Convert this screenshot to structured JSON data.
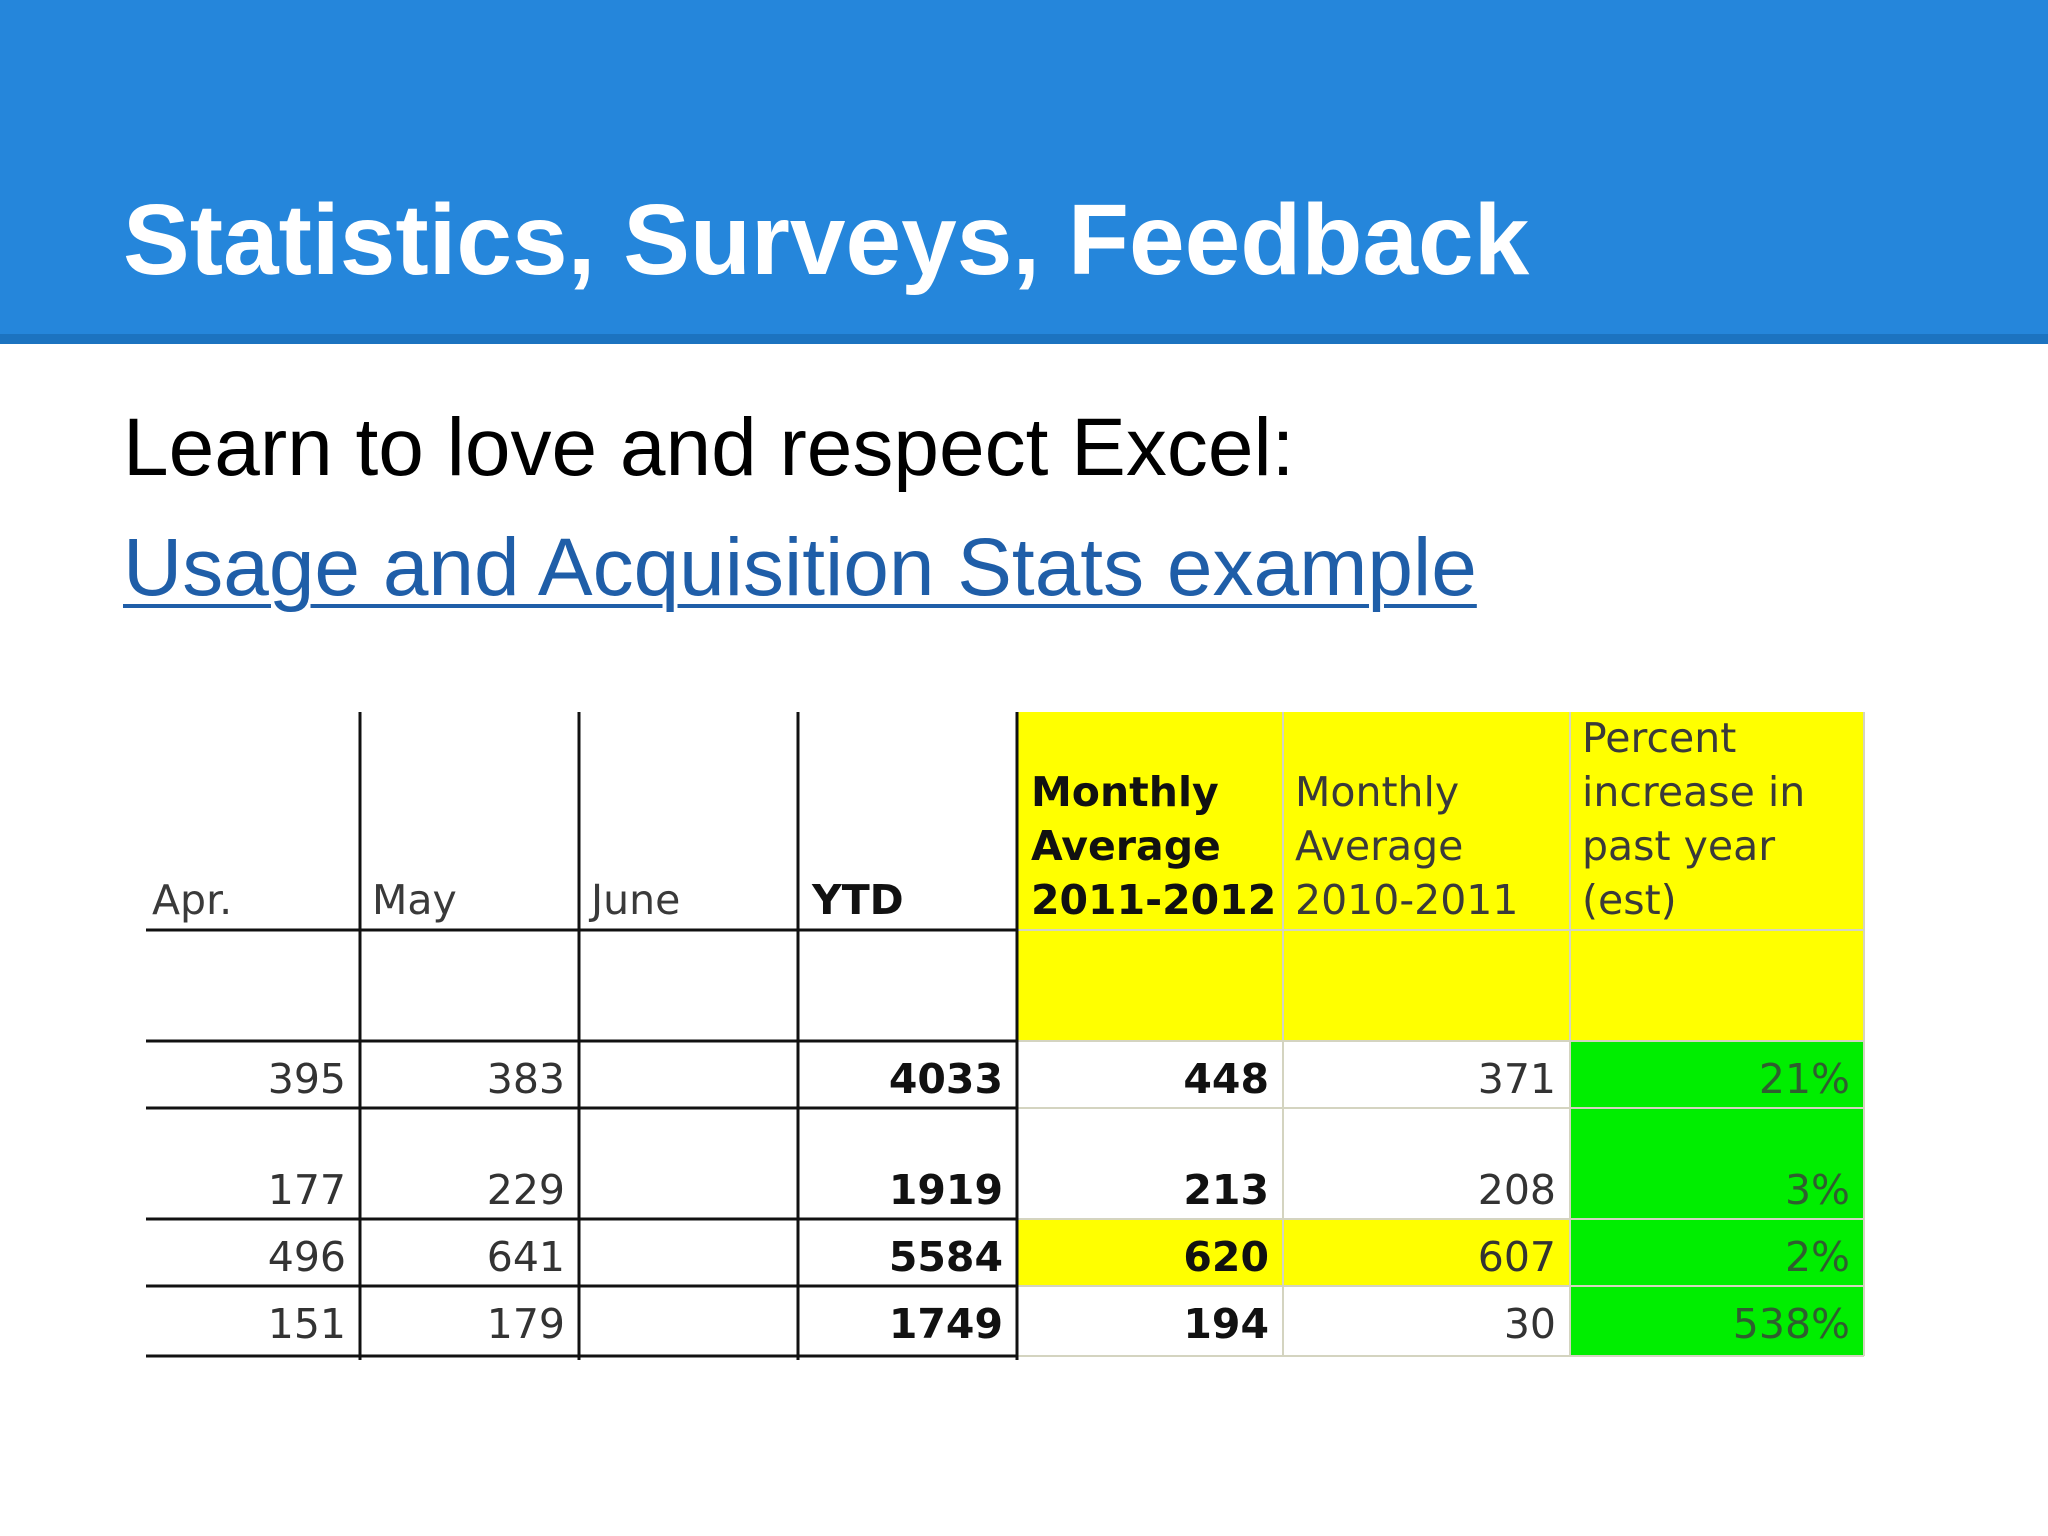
{
  "slide": {
    "title": "Statistics, Surveys, Feedback",
    "body": "Learn to love and respect Excel:",
    "link": "Usage and Acquisition Stats example"
  },
  "colors": {
    "header_band": "#2586db",
    "header_rule": "#1c73c0",
    "link": "#1f5ea8",
    "highlight_yellow": "#ffff00",
    "highlight_green": "#00ee00"
  },
  "table": {
    "headers": {
      "apr": "Apr.",
      "may": "May",
      "june": "June",
      "ytd": "YTD",
      "avg_2011_2012": [
        "Monthly",
        "Average",
        "2011-2012"
      ],
      "avg_2010_2011": [
        "Monthly",
        "Average",
        "2010-2011"
      ],
      "pct_increase": [
        "Percent",
        "increase in",
        "past year",
        "(est)"
      ]
    },
    "rows": [
      {
        "apr": "395",
        "may": "383",
        "june": "",
        "ytd": "4033",
        "avg_2011_2012": "448",
        "avg_2010_2011": "371",
        "pct_increase": "21%"
      },
      {
        "apr": "177",
        "may": "229",
        "june": "",
        "ytd": "1919",
        "avg_2011_2012": "213",
        "avg_2010_2011": "208",
        "pct_increase": "3%"
      },
      {
        "apr": "496",
        "may": "641",
        "june": "",
        "ytd": "5584",
        "avg_2011_2012": "620",
        "avg_2010_2011": "607",
        "pct_increase": "2%"
      },
      {
        "apr": "151",
        "may": "179",
        "june": "",
        "ytd": "1749",
        "avg_2011_2012": "194",
        "avg_2010_2011": "30",
        "pct_increase": "538%"
      }
    ]
  }
}
